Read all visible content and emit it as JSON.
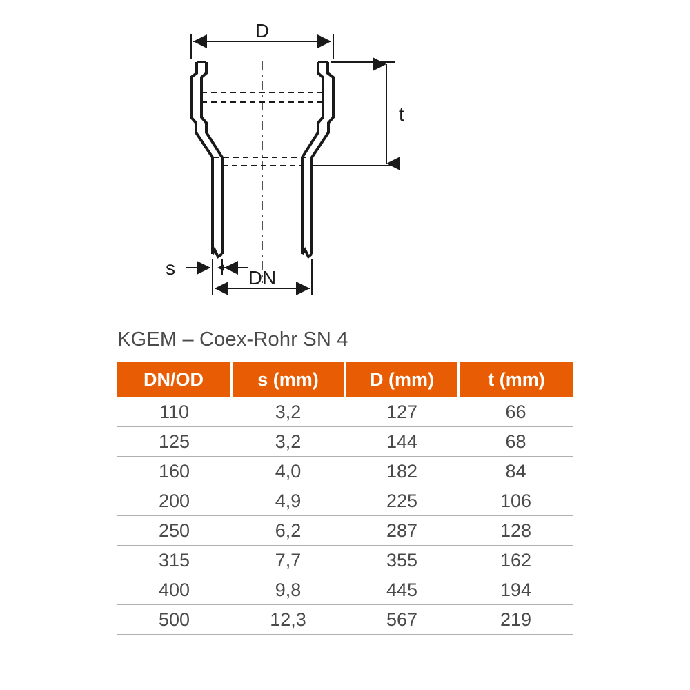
{
  "diagram": {
    "labels": {
      "D": "D",
      "t": "t",
      "s": "s",
      "DN": "DN"
    },
    "stroke_color": "#1a1a1a",
    "stroke_width_heavy": 4,
    "stroke_width_thin": 2,
    "background_color": "#ffffff",
    "font_size": 28,
    "arrow_size": 12
  },
  "table": {
    "title": "KGEM – Coex-Rohr SN 4",
    "title_fontsize": 29,
    "title_color": "#4a4a4a",
    "header_bg": "#e85d04",
    "header_fg": "#ffffff",
    "header_fontsize": 27,
    "cell_fontsize": 27,
    "cell_color": "#4a4a4a",
    "row_border_color": "#b0b0b0",
    "col_gap_color": "#ffffff",
    "columns": [
      "DN/OD",
      "s (mm)",
      "D (mm)",
      "t (mm)"
    ],
    "rows": [
      [
        "110",
        "3,2",
        "127",
        "66"
      ],
      [
        "125",
        "3,2",
        "144",
        "68"
      ],
      [
        "160",
        "4,0",
        "182",
        "84"
      ],
      [
        "200",
        "4,9",
        "225",
        "106"
      ],
      [
        "250",
        "6,2",
        "287",
        "128"
      ],
      [
        "315",
        "7,7",
        "355",
        "162"
      ],
      [
        "400",
        "9,8",
        "445",
        "194"
      ],
      [
        "500",
        "12,3",
        "567",
        "219"
      ]
    ]
  }
}
